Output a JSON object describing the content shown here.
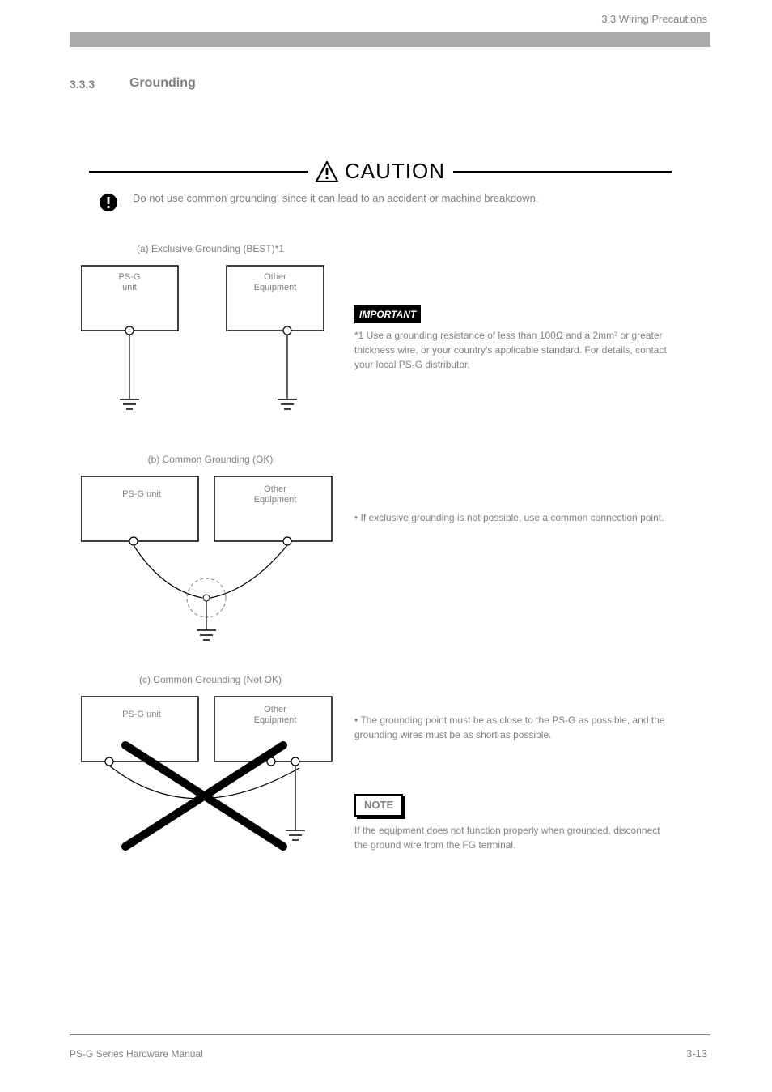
{
  "header": {
    "running_head": "3.3 Wiring Precautions",
    "section_number": "3.3.3",
    "section_title": "Grounding"
  },
  "caution": {
    "label": "CAUTION",
    "body": "Do not use common grounding, since it can lead to an accident or machine breakdown."
  },
  "figures": {
    "a": {
      "label": "(a) Exclusive Grounding (BEST)*1",
      "box1": "PS-G\nunit",
      "box2": "Other\nEquipment"
    },
    "b": {
      "label": "(b) Common Grounding (OK)",
      "box1": "PS-G unit",
      "box2": "Other\nEquipment"
    },
    "c": {
      "label": "(c) Common Grounding (Not OK)",
      "box1": "PS-G unit",
      "box2": "Other\nEquipment"
    }
  },
  "important": {
    "label": "IMPORTANT",
    "lines": [
      "*1 Use a grounding resistance of less than 100Ω and a 2mm² or greater thickness wire, or your country's applicable standard. For details, contact your local PS-G distributor."
    ]
  },
  "fig_b_note": "• If exclusive grounding is not possible, use a common connection point.",
  "fig_c_note": "• The grounding point must be as close to the PS-G as possible, and the grounding wires must be as short as possible.",
  "note": {
    "label": "NOTE",
    "text": "If the equipment does not function properly when grounded, disconnect the ground wire from the FG terminal."
  },
  "footer": {
    "left": "PS-G Series Hardware Manual",
    "page": "3-13"
  },
  "colors": {
    "gray_bar": "#aaaaaa",
    "text_gray": "#808080",
    "black": "#000000"
  }
}
